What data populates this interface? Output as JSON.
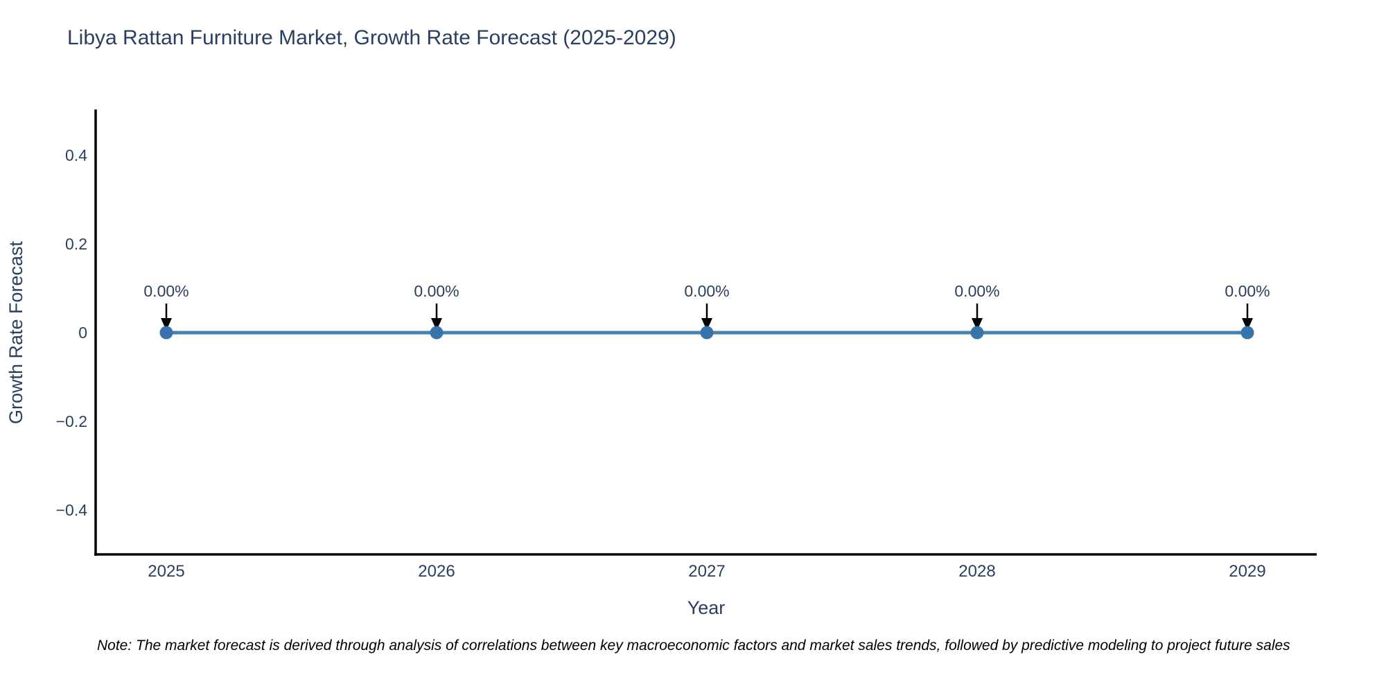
{
  "page": {
    "background": "#ffffff"
  },
  "chart_data": {
    "type": "line",
    "title": "Libya Rattan Furniture Market, Growth Rate Forecast (2025-2029)",
    "xlabel": "Year",
    "ylabel": "Growth Rate Forecast",
    "categories": [
      "2025",
      "2026",
      "2027",
      "2028",
      "2029"
    ],
    "values": [
      0,
      0,
      0,
      0,
      0
    ],
    "point_labels": [
      "0.00%",
      "0.00%",
      "0.00%",
      "0.00%",
      "0.00%"
    ],
    "ylim": [
      -0.5,
      0.5
    ],
    "yticks": [
      {
        "value": 0.4,
        "label": "0.4"
      },
      {
        "value": 0.2,
        "label": "0.2"
      },
      {
        "value": 0,
        "label": "0"
      },
      {
        "value": -0.2,
        "label": "−0.2"
      },
      {
        "value": -0.4,
        "label": "−0.4"
      }
    ],
    "grid": false,
    "legend": "none",
    "colors": {
      "line": "#4a81ad",
      "marker": "#3874ac",
      "axis": "#000000",
      "text": "#2a3f5f",
      "arrow": "#000000",
      "note": "#000000"
    }
  },
  "footnote": {
    "text": "Note: The market forecast is derived through analysis of correlations between key macroeconomic factors and market sales trends, followed by predictive modeling to project future sales"
  }
}
